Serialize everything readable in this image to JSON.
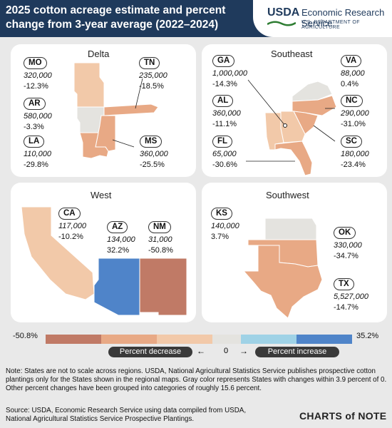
{
  "header": {
    "title": "2025 cotton acreage estimate and percent change from 3-year average (2022–2024)",
    "agency_logo": "USDA",
    "agency_name": "Economic Research Service",
    "department": "U.S. DEPARTMENT OF AGRICULTURE"
  },
  "regions": {
    "delta": {
      "title": "Delta",
      "states": {
        "MO": {
          "abbr": "MO",
          "value": "320,000",
          "pct": "-12.3%"
        },
        "TN": {
          "abbr": "TN",
          "value": "235,000",
          "pct": "-18.5%"
        },
        "AR": {
          "abbr": "AR",
          "value": "580,000",
          "pct": "-3.3%"
        },
        "LA": {
          "abbr": "LA",
          "value": "110,000",
          "pct": "-29.8%"
        },
        "MS": {
          "abbr": "MS",
          "value": "360,000",
          "pct": "-25.5%"
        }
      }
    },
    "southeast": {
      "title": "Southeast",
      "states": {
        "GA": {
          "abbr": "GA",
          "value": "1,000,000",
          "pct": "-14.3%"
        },
        "VA": {
          "abbr": "VA",
          "value": "88,000",
          "pct": "0.4%"
        },
        "AL": {
          "abbr": "AL",
          "value": "360,000",
          "pct": "-11.1%"
        },
        "NC": {
          "abbr": "NC",
          "value": "290,000",
          "pct": "-31.0%"
        },
        "FL": {
          "abbr": "FL",
          "value": "65,000",
          "pct": "-30.6%"
        },
        "SC": {
          "abbr": "SC",
          "value": "180,000",
          "pct": "-23.4%"
        }
      }
    },
    "west": {
      "title": "West",
      "states": {
        "CA": {
          "abbr": "CA",
          "value": "117,000",
          "pct": "-10.2%"
        },
        "AZ": {
          "abbr": "AZ",
          "value": "134,000",
          "pct": "32.2%"
        },
        "NM": {
          "abbr": "NM",
          "value": "31,000",
          "pct": "-50.8%"
        }
      }
    },
    "southwest": {
      "title": "Southwest",
      "states": {
        "KS": {
          "abbr": "KS",
          "value": "140,000",
          "pct": "3.7%"
        },
        "OK": {
          "abbr": "OK",
          "value": "330,000",
          "pct": "-34.7%"
        },
        "TX": {
          "abbr": "TX",
          "value": "5,527,000",
          "pct": "-14.7%"
        }
      }
    }
  },
  "legend": {
    "min_label": "-50.8%",
    "max_label": "35.2%",
    "decrease_label": "Percent decrease",
    "increase_label": "Percent increase",
    "zero_label": "0",
    "colors": {
      "dark_decrease": "#c07a66",
      "mid_decrease": "#e8a985",
      "light_decrease": "#f2c9a9",
      "neutral": "#e4e3df",
      "light_increase": "#9fd2e6",
      "strong_increase": "#4f84c9"
    }
  },
  "note": "Note: States are not to scale across regions. USDA, National Agricultural Statistics Service publishes prospective cotton plantings only for the States shown in the regional maps. Gray color represents States with changes within 3.9 percent of 0. Other percent changes have been grouped into categories of roughly 15.6 percent.",
  "source": "Source: USDA, Economic Research Service using data compiled from USDA, National Agricultural Statistics Service Prospective Plantings.",
  "branding": "CHARTS of NOTE"
}
